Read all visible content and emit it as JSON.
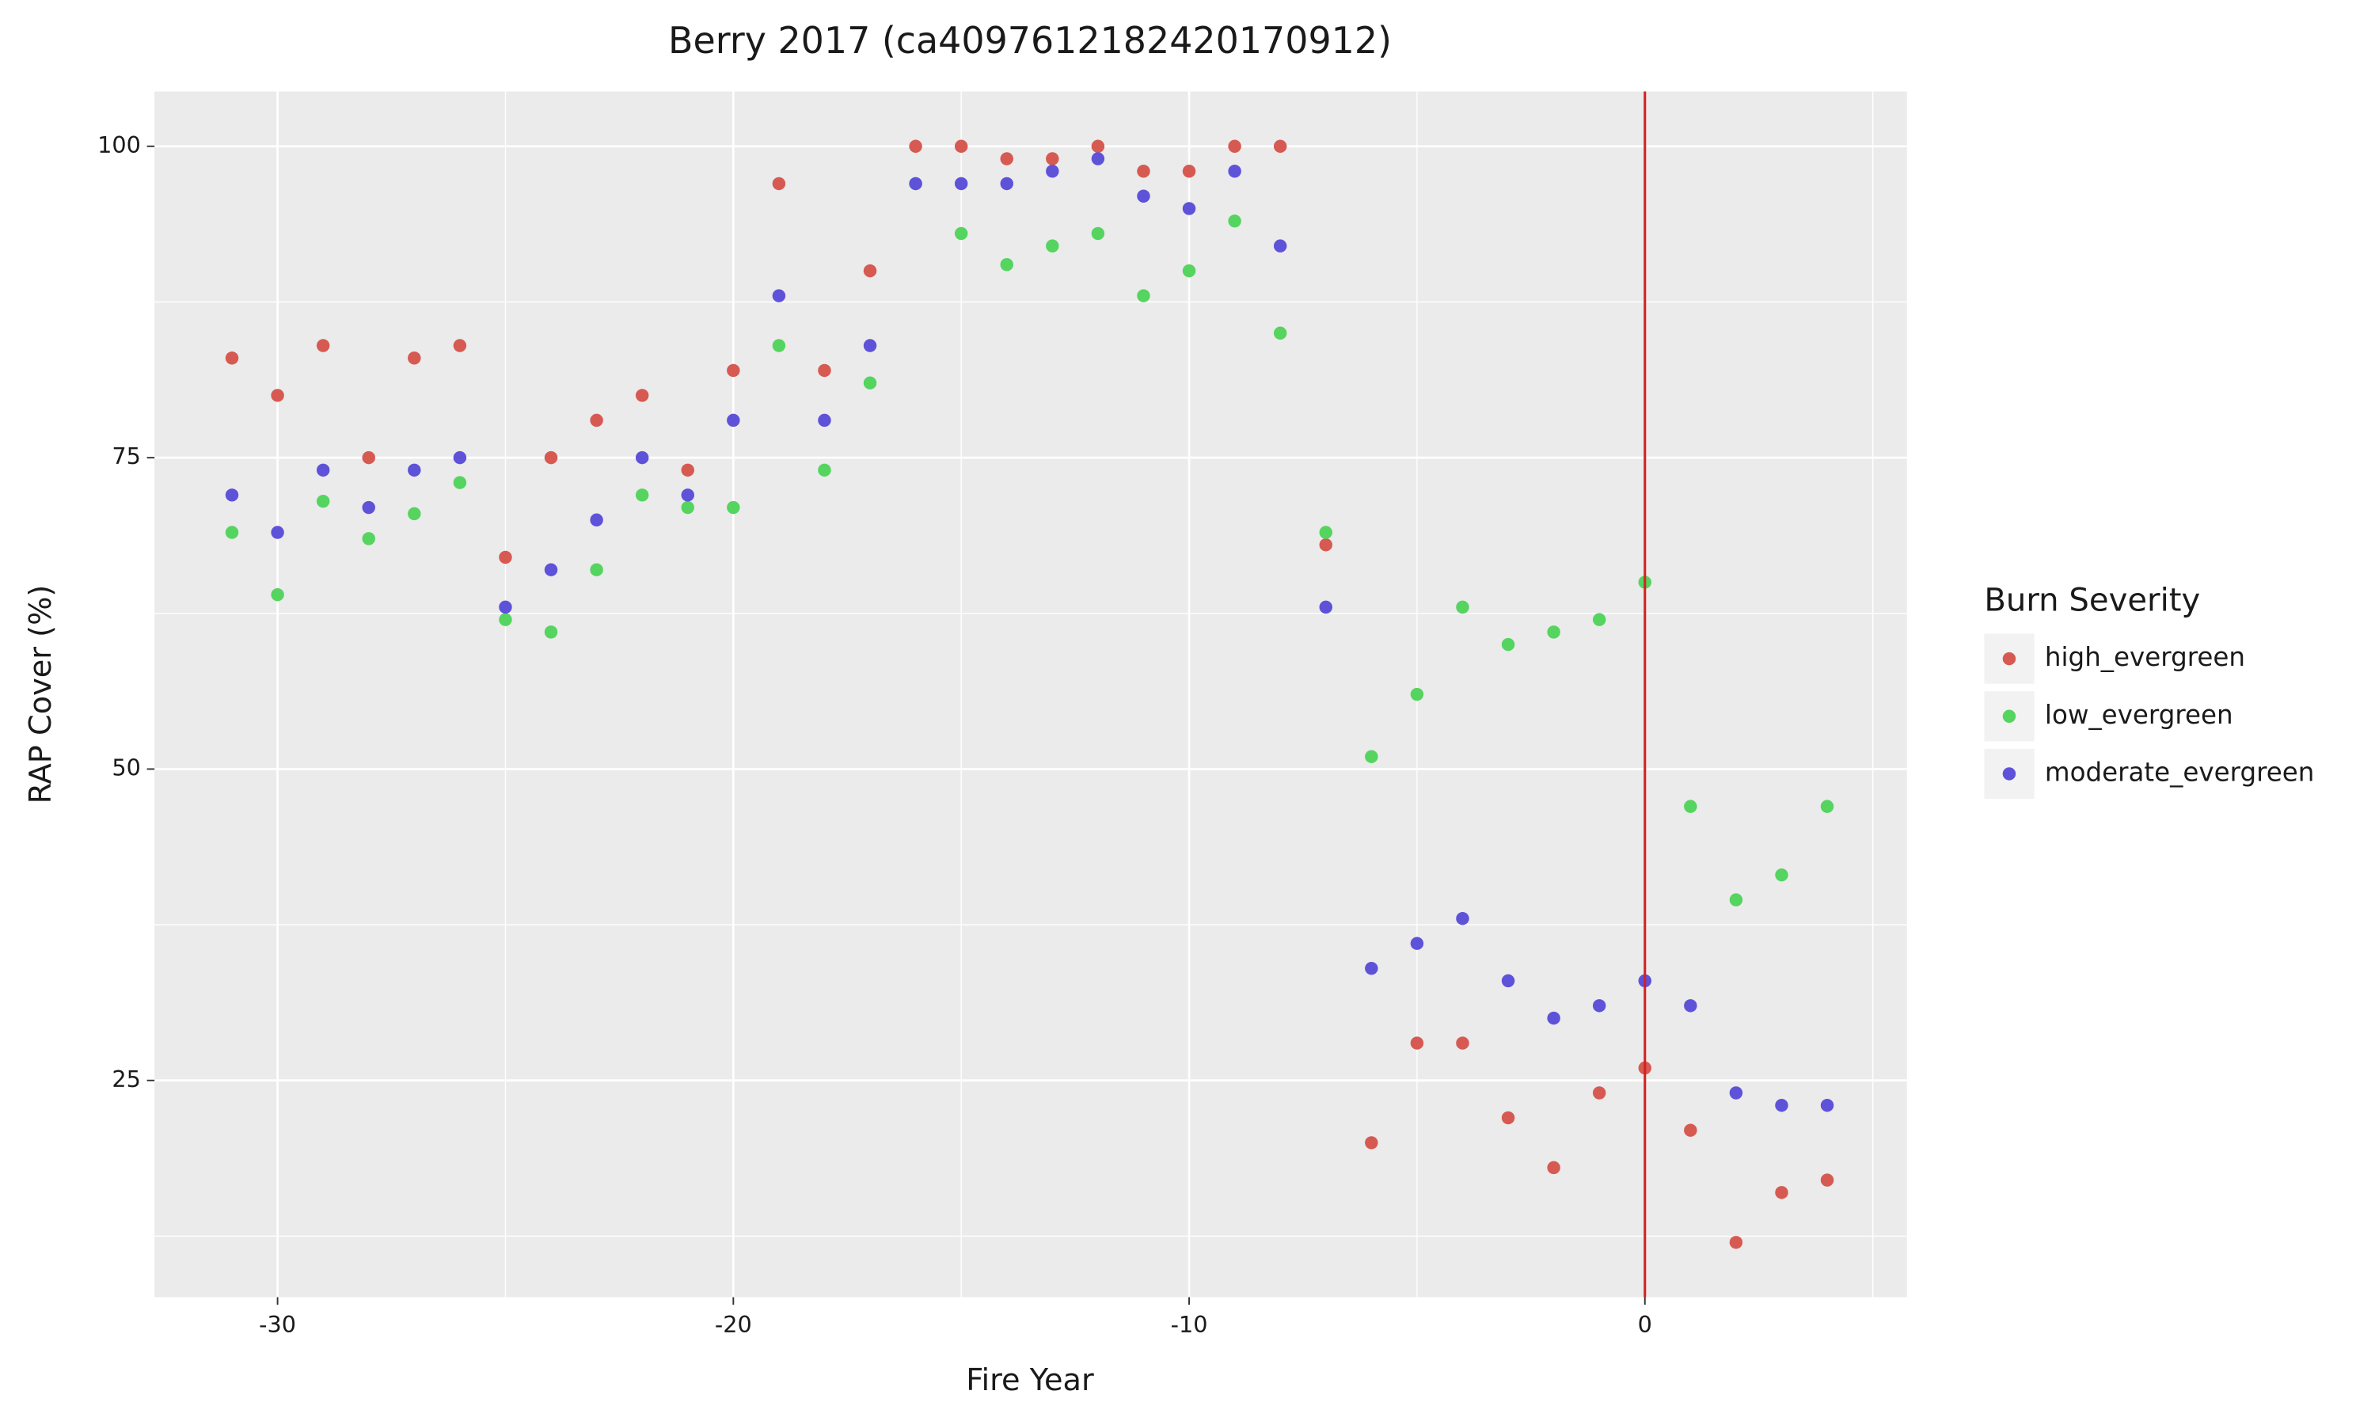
{
  "chart_data": {
    "type": "scatter",
    "title": "Berry 2017 (ca4097612182420170912)",
    "x_label": "Fire Year",
    "y_label": "RAP Cover (%)",
    "legend_title": "Burn Severity",
    "x": [
      -31,
      -30,
      -29,
      -28,
      -27,
      -26,
      -25,
      -24,
      -23,
      -22,
      -21,
      -20,
      -19,
      -18,
      -17,
      -16,
      -15,
      -14,
      -13,
      -12,
      -11,
      -10,
      -9,
      -8,
      -7,
      -6,
      -5,
      -4,
      -3,
      -2,
      -1,
      0,
      1,
      2,
      3,
      4
    ],
    "series": [
      {
        "name": "high_evergreen",
        "color": "#d65a52",
        "values": [
          83,
          80,
          84,
          75,
          83,
          84,
          67,
          75,
          78,
          80,
          74,
          82,
          97,
          82,
          90,
          100,
          100,
          99,
          99,
          100,
          98,
          98,
          100,
          100,
          68,
          20,
          28,
          28,
          22,
          18,
          24,
          26,
          21,
          12,
          16,
          17
        ]
      },
      {
        "name": "low_evergreen",
        "color": "#55d45f",
        "values": [
          69,
          64,
          71.5,
          68.5,
          70.5,
          73,
          62,
          61,
          66,
          72,
          71,
          71,
          84,
          74,
          81,
          97,
          93,
          90.5,
          92,
          93,
          88,
          90,
          94,
          85,
          69,
          51,
          56,
          63,
          60,
          61,
          62,
          65,
          47,
          39.5,
          41.5,
          47
        ]
      },
      {
        "name": "moderate_evergreen",
        "color": "#5e52d9",
        "values": [
          72,
          69,
          74,
          71,
          74,
          75,
          63,
          66,
          70,
          75,
          72,
          78,
          88,
          78,
          84,
          97,
          97,
          97,
          98,
          99,
          96,
          95,
          98,
          92,
          63,
          34,
          36,
          38,
          33,
          30,
          31,
          33,
          31,
          24,
          23,
          23
        ]
      }
    ],
    "xlim": [
      -32.7,
      5.75
    ],
    "ylim": [
      7.6,
      104.4
    ],
    "xticks": [
      -30,
      -20,
      -10,
      0
    ],
    "yticks": [
      25,
      50,
      75,
      100
    ],
    "x_minor_ticks": [
      -25,
      -15,
      -5,
      5
    ],
    "y_minor_ticks": [
      12.5,
      37.5,
      62.5,
      87.5
    ],
    "vline": {
      "x": 0,
      "color": "#d62020"
    },
    "grid": true,
    "legend": "right"
  }
}
